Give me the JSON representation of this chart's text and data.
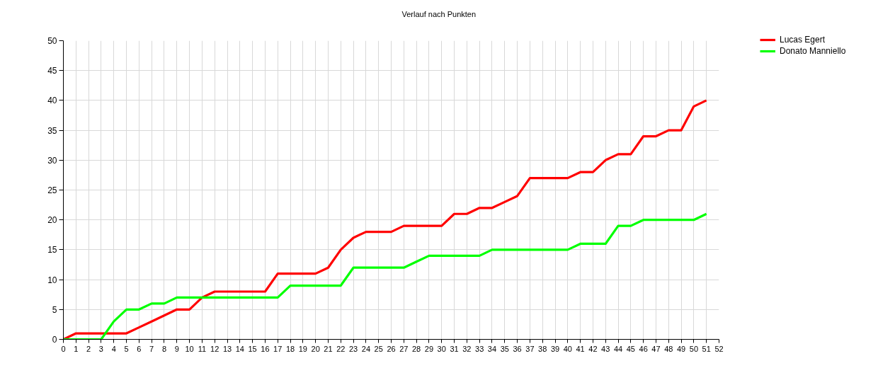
{
  "chart_data": {
    "type": "line",
    "title": "Verlauf nach Punkten",
    "x": [
      0,
      1,
      2,
      3,
      4,
      5,
      6,
      7,
      8,
      9,
      10,
      11,
      12,
      13,
      14,
      15,
      16,
      17,
      18,
      19,
      20,
      21,
      22,
      23,
      24,
      25,
      26,
      27,
      28,
      29,
      30,
      31,
      32,
      33,
      34,
      35,
      36,
      37,
      38,
      39,
      40,
      41,
      42,
      43,
      44,
      45,
      46,
      47,
      48,
      49,
      50,
      51
    ],
    "series": [
      {
        "name": "Lucas Egert",
        "color": "#ff0000",
        "values": [
          0,
          1,
          1,
          1,
          1,
          1,
          2,
          3,
          4,
          5,
          5,
          7,
          8,
          8,
          8,
          8,
          8,
          11,
          11,
          11,
          11,
          12,
          15,
          17,
          18,
          18,
          18,
          19,
          19,
          19,
          19,
          21,
          21,
          22,
          22,
          23,
          24,
          27,
          27,
          27,
          27,
          28,
          28,
          30,
          31,
          31,
          34,
          34,
          35,
          35,
          39,
          40
        ]
      },
      {
        "name": "Donato Manniello",
        "color": "#00ff00",
        "values": [
          0,
          0,
          0,
          0,
          3,
          5,
          5,
          6,
          6,
          7,
          7,
          7,
          7,
          7,
          7,
          7,
          7,
          7,
          9,
          9,
          9,
          9,
          9,
          12,
          12,
          12,
          12,
          12,
          13,
          14,
          14,
          14,
          14,
          14,
          15,
          15,
          15,
          15,
          15,
          15,
          15,
          16,
          16,
          16,
          19,
          19,
          20,
          20,
          20,
          20,
          20,
          21
        ]
      }
    ],
    "xlim": [
      0,
      52
    ],
    "ylim": [
      0,
      50
    ],
    "xticks": [
      0,
      1,
      2,
      3,
      4,
      5,
      6,
      7,
      8,
      9,
      10,
      11,
      12,
      13,
      14,
      15,
      16,
      17,
      18,
      19,
      20,
      21,
      22,
      23,
      24,
      25,
      26,
      27,
      28,
      29,
      30,
      31,
      32,
      33,
      34,
      35,
      36,
      37,
      38,
      39,
      40,
      41,
      42,
      43,
      44,
      45,
      46,
      47,
      48,
      49,
      50,
      51,
      52
    ],
    "yticks": [
      0,
      5,
      10,
      15,
      20,
      25,
      30,
      35,
      40,
      45,
      50
    ],
    "grid": true,
    "legend": "top right",
    "line_style": "solid"
  }
}
